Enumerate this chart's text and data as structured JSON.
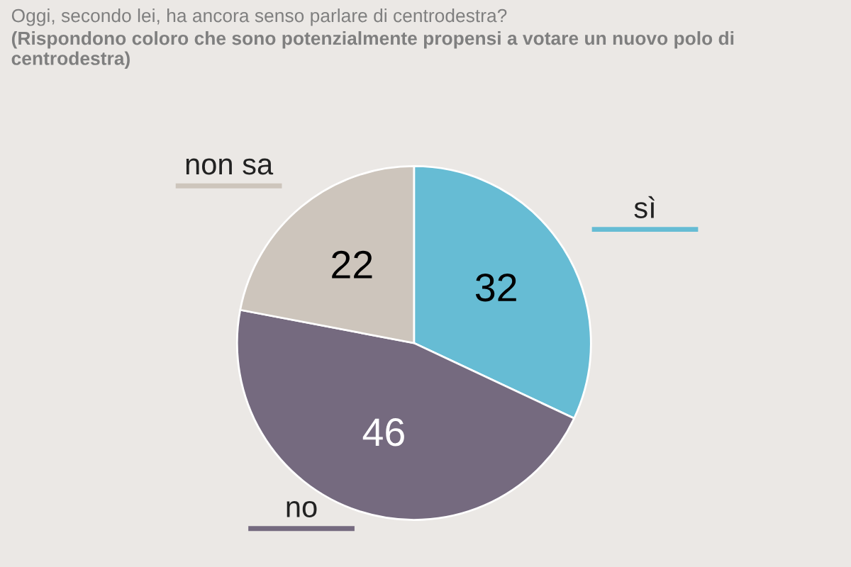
{
  "chart_data": {
    "type": "pie",
    "title": "Oggi, secondo lei, ha ancora senso parlare di centrodestra?",
    "subtitle": "(Rispondono coloro che sono potenzialmente propensi a votare un nuovo polo di centrodestra)",
    "categories": [
      "sì",
      "no",
      "non sa"
    ],
    "values": [
      32,
      46,
      22
    ],
    "colors": [
      "#66bcd4",
      "#756a7f",
      "#cdc5bc"
    ],
    "data_labels": true,
    "legend": false
  }
}
